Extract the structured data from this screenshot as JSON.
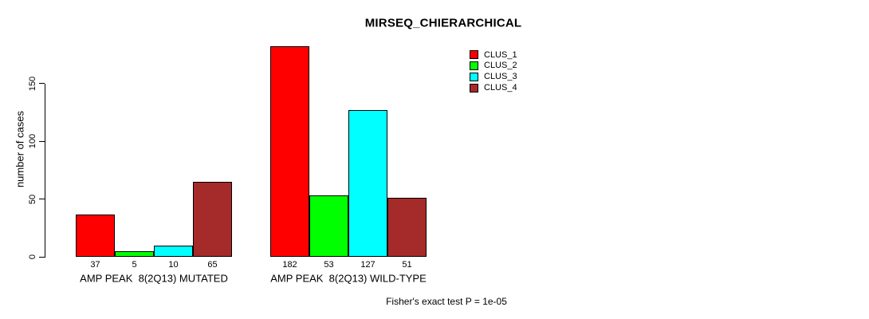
{
  "title": "MIRSEQ_CHIERARCHICAL",
  "ylabel": "number of cases",
  "footer": "Fisher's exact test P = 1e-05",
  "chart_data": {
    "type": "bar",
    "title": "MIRSEQ_CHIERARCHICAL",
    "xlabel": "",
    "ylabel": "number of cases",
    "categories": [
      "AMP PEAK  8(2Q13) MUTATED",
      "AMP PEAK  8(2Q13) WILD-TYPE"
    ],
    "series": [
      {
        "name": "CLUS_1",
        "color": "#FF0000",
        "values": [
          37,
          182
        ]
      },
      {
        "name": "CLUS_2",
        "color": "#00FF00",
        "values": [
          5,
          53
        ]
      },
      {
        "name": "CLUS_3",
        "color": "#00FFFF",
        "values": [
          10,
          127
        ]
      },
      {
        "name": "CLUS_4",
        "color": "#A52A2A",
        "values": [
          65,
          51
        ]
      }
    ],
    "bar_value_labels": [
      [
        37,
        5,
        10,
        65
      ],
      [
        182,
        53,
        127,
        51
      ]
    ],
    "yticks": [
      0,
      50,
      100,
      150
    ],
    "ylim": [
      0,
      150
    ],
    "grid": false,
    "legend_position": "top-right",
    "annotation": "Fisher's exact test P = 1e-05"
  }
}
